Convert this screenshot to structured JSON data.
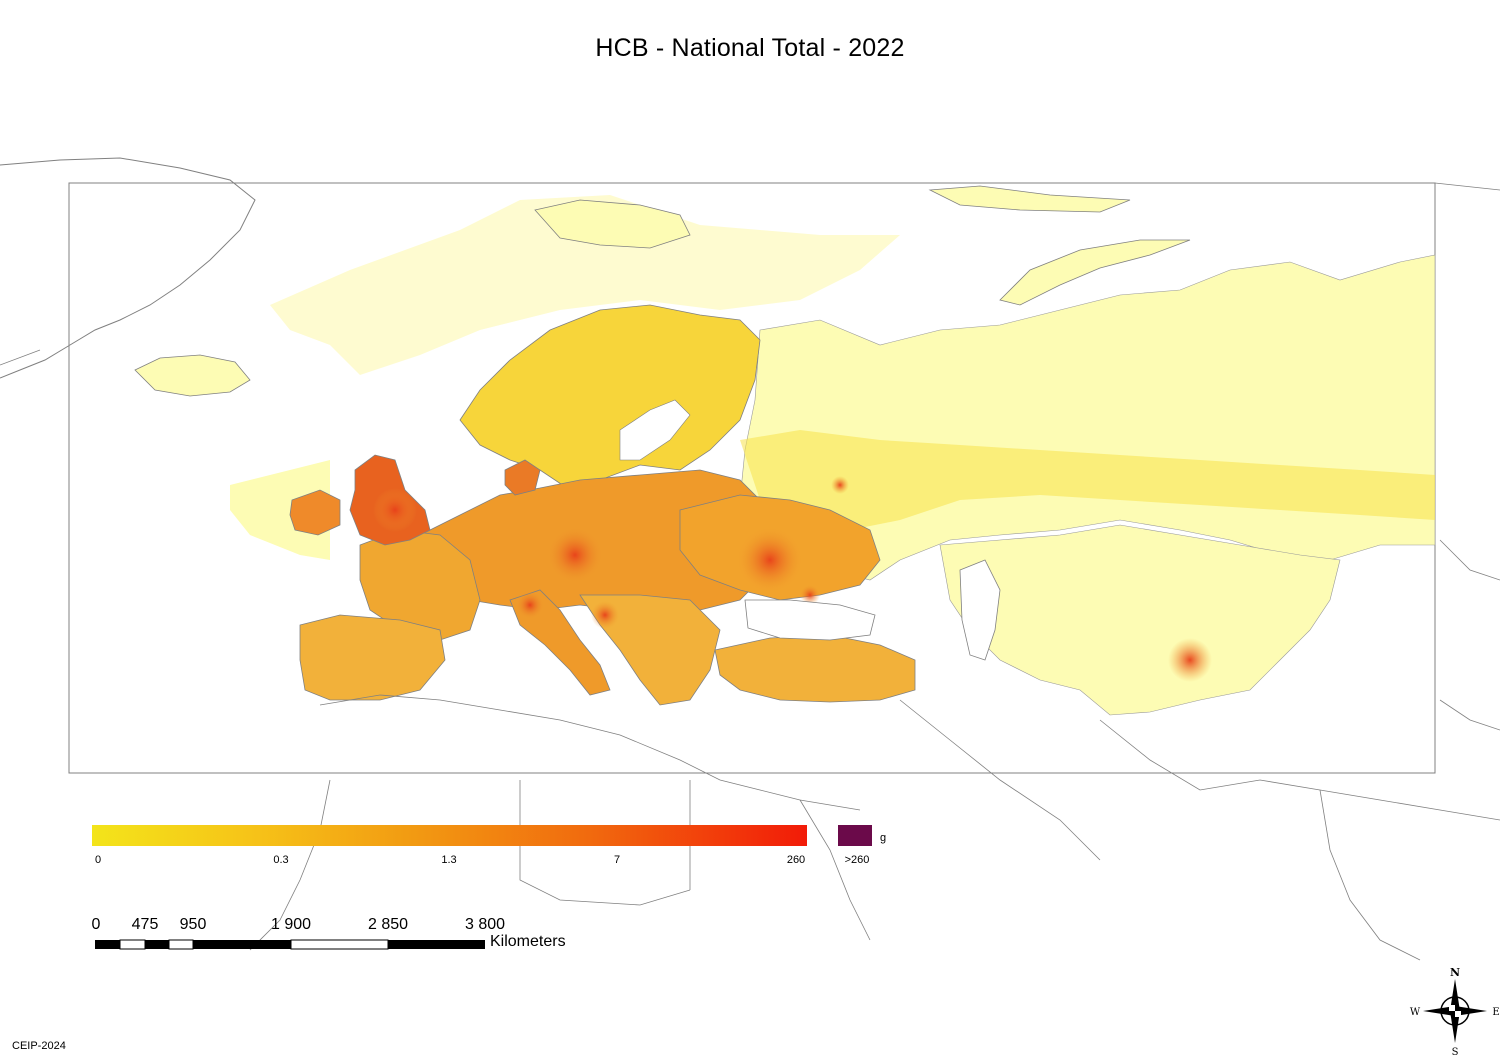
{
  "title": "HCB - National Total - 2022",
  "legend": {
    "tick_labels": [
      "0",
      "0.3",
      "1.3",
      "7",
      "260"
    ],
    "overflow_label": ">260",
    "unit": "g",
    "colors": {
      "low": "#f3e41a",
      "mid": "#f29a12",
      "high": "#f21b08",
      "overflow": "#6b0a4a"
    }
  },
  "scale": {
    "labels": [
      "0",
      "475",
      "950",
      "1 900",
      "2 850",
      "3 800"
    ],
    "unit": "Kilometers"
  },
  "compass": {
    "n": "N",
    "s": "S",
    "e": "E",
    "w": "W"
  },
  "credit": "CEIP-2024",
  "colors": {
    "land_pale": "#fdfcb4",
    "land_mid": "#f7cf3a",
    "land_orange": "#ef9a2a",
    "hotspot": "#e8501c",
    "outline": "#808080"
  }
}
